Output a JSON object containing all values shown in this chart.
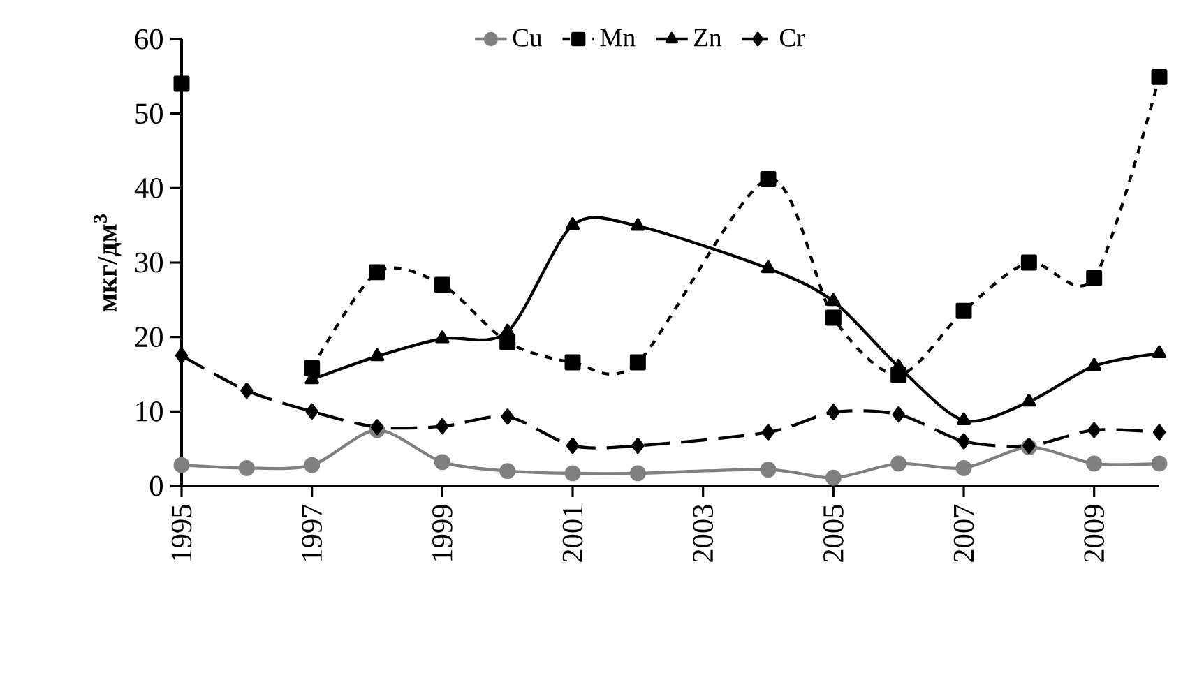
{
  "chart_data": {
    "type": "line",
    "ylabel": "мкг/дм$^{3}$",
    "xlim": [
      1995,
      2010
    ],
    "ylim": [
      0,
      60
    ],
    "xticks": [
      1995,
      1997,
      1999,
      2001,
      2003,
      2005,
      2007,
      2009
    ],
    "yticks": [
      0,
      10,
      20,
      30,
      40,
      50,
      60
    ],
    "grid": false,
    "legend": "top",
    "series": [
      {
        "name": "Cu",
        "color": "#808080",
        "marker": "circle",
        "line_style": "solid",
        "x": [
          1995,
          1996,
          1997,
          1998,
          1999,
          2000,
          2001,
          2002,
          2004,
          2005,
          2006,
          2007,
          2008,
          2009,
          2010
        ],
        "values": [
          2.8,
          2.4,
          2.8,
          7.5,
          3.2,
          2.0,
          1.7,
          1.7,
          2.2,
          1.1,
          3.0,
          2.4,
          5.2,
          3.0,
          3.0
        ]
      },
      {
        "name": "Mn",
        "color": "#000000",
        "marker": "square",
        "line_style": "dotted",
        "x": [
          1995,
          1996,
          1997,
          1998,
          1999,
          2000,
          2001,
          2002,
          2004,
          2005,
          2006,
          2007,
          2008,
          2009,
          2010
        ],
        "values": [
          54,
          null,
          15.8,
          28.7,
          27.0,
          19.3,
          16.6,
          16.6,
          41.2,
          22.6,
          14.9,
          23.5,
          30.0,
          27.9,
          54.9
        ]
      },
      {
        "name": "Zn",
        "color": "#000000",
        "marker": "triangle",
        "line_style": "solid",
        "x": [
          1997,
          1998,
          1999,
          2000,
          2001,
          2002,
          2004,
          2005,
          2006,
          2007,
          2008,
          2009,
          2010
        ],
        "values": [
          14.3,
          17.4,
          19.8,
          20.7,
          35.0,
          34.9,
          29.2,
          24.8,
          16.0,
          8.8,
          11.3,
          16.1,
          17.8
        ]
      },
      {
        "name": "Cr",
        "color": "#000000",
        "marker": "diamond",
        "line_style": "dashed",
        "x": [
          1995,
          1996,
          1997,
          1998,
          1999,
          2000,
          2001,
          2002,
          2004,
          2005,
          2006,
          2007,
          2008,
          2009,
          2010
        ],
        "values": [
          17.5,
          12.8,
          10.0,
          7.9,
          8.0,
          9.3,
          5.4,
          5.4,
          7.2,
          9.9,
          9.6,
          6.0,
          5.4,
          7.5,
          7.2
        ]
      }
    ]
  }
}
